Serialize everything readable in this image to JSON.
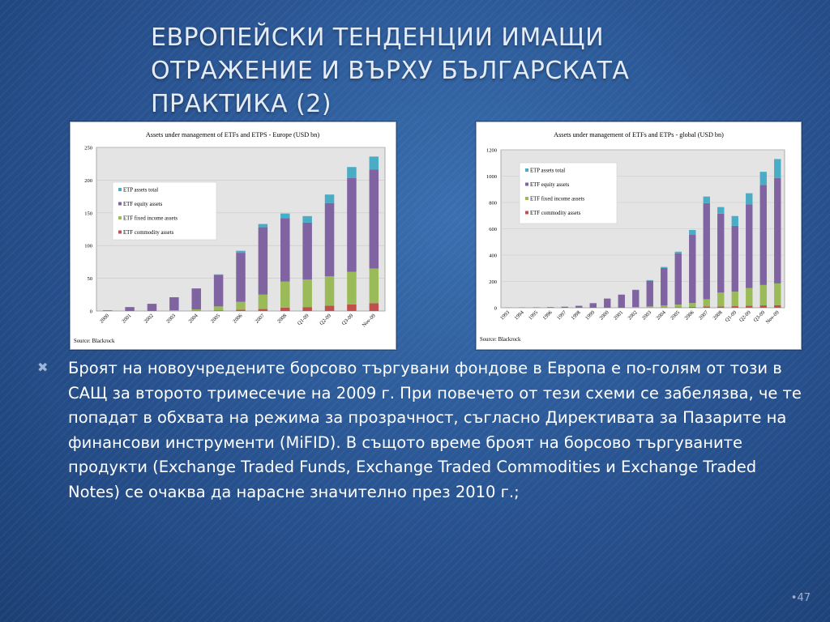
{
  "slide": {
    "title_lines": [
      "ЕВРОПЕЙСКИ ТЕНДЕНЦИИ ИМАЩИ",
      "ОТРАЖЕНИЕ И ВЪРХУ БЪЛГАРСКАТА",
      "ПРАКТИКА (2)"
    ],
    "bullet_icon": "x-bullet-icon",
    "bullet_text": "Броят на новоучредените борсово търгувани фондове в Европа е по-голям от този в САЩ за второто тримесечие на 2009 г. При повечето от тези схеми се забелязва, че те попадат в обхвата на режима за прозрачност, съгласно Директивата за Пазарите на финансови инструменти (MiFID). В същото време броят на борсово търгуваните продукти (Exchange Traded Funds, Exchange Traded Commodities и Exchange Traded Notes) се очаква да нарасне значително през 2010 г.;",
    "page_number": "•47"
  },
  "colors": {
    "commodity": "#c0504d",
    "fixed_income": "#9bbb59",
    "equity": "#8064a2",
    "etp_total": "#4bacc6"
  },
  "chart_data": [
    {
      "type": "bar",
      "stacked": true,
      "title": "Assets under management of ETFs and ETPS - Europe (USD bn)",
      "source": "Source: Blackrock",
      "categories": [
        "2000",
        "2001",
        "2002",
        "2003",
        "2004",
        "2005",
        "2006",
        "2007",
        "2008",
        "Q1-09",
        "Q2-09",
        "Q3-09",
        "Nov-09"
      ],
      "ylim": [
        0,
        250
      ],
      "yticks": [
        0,
        50,
        100,
        150,
        200,
        250
      ],
      "legend_position": "upper-left",
      "legend": [
        "ETP assets total",
        "ETF equity assets",
        "ETF fixed income assets",
        "ETF commodity assets"
      ],
      "series": [
        {
          "name": "ETF commodity assets",
          "values": [
            0,
            0,
            0,
            0,
            0.5,
            1,
            2,
            3,
            5,
            6,
            8,
            10,
            12
          ]
        },
        {
          "name": "ETF fixed income assets",
          "values": [
            0,
            0,
            0,
            1,
            2,
            6,
            12,
            22,
            40,
            42,
            45,
            50,
            53
          ]
        },
        {
          "name": "ETF equity assets",
          "values": [
            1,
            6,
            11,
            20,
            32,
            48,
            75,
            103,
            97,
            87,
            112,
            143,
            151
          ]
        },
        {
          "name": "ETP assets total",
          "values": [
            0,
            0,
            0,
            0,
            0,
            1,
            3,
            5,
            7,
            10,
            13,
            17,
            20
          ]
        }
      ]
    },
    {
      "type": "bar",
      "stacked": true,
      "title": "Assets under management of ETFs and ETPs - global (USD bn)",
      "source": "Source: Blackrock",
      "categories": [
        "1993",
        "1994",
        "1995",
        "1996",
        "1997",
        "1998",
        "1999",
        "2000",
        "2001",
        "2002",
        "2003",
        "2004",
        "2005",
        "2006",
        "2007",
        "2008",
        "Q1-09",
        "Q2-09",
        "Q3-09",
        "Nov-09"
      ],
      "ylim": [
        0,
        1200
      ],
      "yticks": [
        0,
        200,
        400,
        600,
        800,
        1000,
        1200
      ],
      "legend_position": "upper-left",
      "legend": [
        "ETP assets total",
        "ETF equity assets",
        "ETF fixed income assets",
        "ETF commodity assets"
      ],
      "series": [
        {
          "name": "ETF commodity assets",
          "values": [
            0,
            0,
            0,
            0,
            0,
            0,
            0,
            0,
            0,
            0,
            0,
            2,
            4,
            6,
            10,
            10,
            12,
            15,
            18,
            20
          ]
        },
        {
          "name": "ETF fixed income assets",
          "values": [
            0,
            0,
            0,
            0,
            0,
            0,
            0,
            0,
            0,
            5,
            10,
            15,
            20,
            30,
            55,
            105,
            110,
            135,
            155,
            165
          ]
        },
        {
          "name": "ETF equity assets",
          "values": [
            1,
            2,
            3,
            5,
            8,
            15,
            35,
            70,
            100,
            130,
            195,
            285,
            390,
            520,
            730,
            600,
            500,
            635,
            760,
            800
          ]
        },
        {
          "name": "ETP assets total",
          "values": [
            0,
            0,
            0,
            0,
            0,
            0,
            0,
            0,
            0,
            2,
            5,
            8,
            12,
            35,
            50,
            50,
            75,
            85,
            100,
            145
          ]
        }
      ]
    }
  ]
}
